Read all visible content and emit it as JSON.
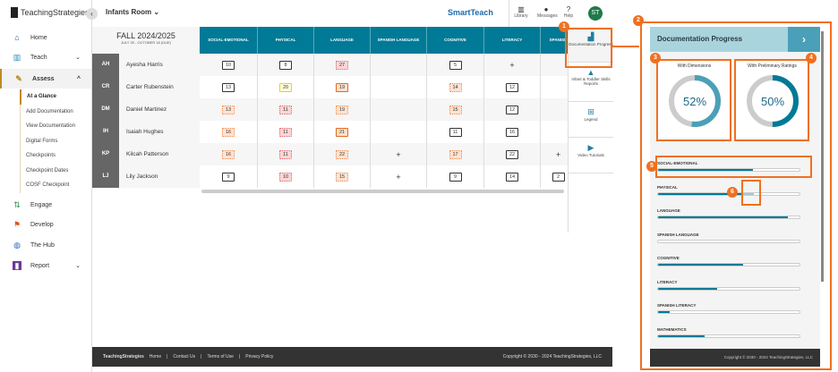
{
  "app": {
    "logo": "TeachingStrategies",
    "room": "Infants Room",
    "brand": "SmartTeach",
    "avatar": "ST"
  },
  "top_tools": [
    {
      "label": "Library",
      "icon": "library-icon"
    },
    {
      "label": "Messages",
      "icon": "chat-icon"
    },
    {
      "label": "Help",
      "icon": "help-icon"
    }
  ],
  "sidebar": {
    "items": [
      {
        "label": "Home",
        "icon": "home-icon"
      },
      {
        "label": "Teach",
        "icon": "book-icon"
      },
      {
        "label": "Assess",
        "icon": "clipboard-icon"
      },
      {
        "label": "Engage",
        "icon": "engage-icon"
      },
      {
        "label": "Develop",
        "icon": "flag-icon"
      },
      {
        "label": "The Hub",
        "icon": "globe-icon"
      },
      {
        "label": "Report",
        "icon": "chart-icon"
      }
    ],
    "sub_items": [
      "At a Glance",
      "Add Documentation",
      "View Documentation",
      "Digital Forms",
      "Checkpoints",
      "Checkpoint Dates",
      "COSF Checkpoint"
    ]
  },
  "grid": {
    "term": "FALL 2024/2025",
    "dates": "JULY 30 - OCTOBER 18 (DUE)",
    "columns": [
      "SOCIAL-EMOTIONAL",
      "PHYSICAL",
      "LANGUAGE",
      "SPANISH LANGUAGE",
      "COGNITIVE",
      "LITERACY",
      "SPANISH LITERACY"
    ],
    "rows": [
      {
        "initials": "AH",
        "name": "Ayesha Harris",
        "cells": [
          [
            "10",
            "dark"
          ],
          [
            "8",
            "dark"
          ],
          [
            "27",
            "pink"
          ],
          [
            "",
            ""
          ],
          [
            "5",
            "dark"
          ],
          [
            "+",
            "plus"
          ],
          [
            "",
            ""
          ]
        ]
      },
      {
        "initials": "CR",
        "name": "Carter Rubenstein",
        "cells": [
          [
            "13",
            "dark"
          ],
          [
            "20",
            "yellow"
          ],
          [
            "19",
            "orange"
          ],
          [
            "",
            ""
          ],
          [
            "14",
            "peach"
          ],
          [
            "12",
            "dark"
          ],
          [
            "",
            ""
          ]
        ]
      },
      {
        "initials": "DM",
        "name": "Daniel Martinez",
        "cells": [
          [
            "13",
            "peach"
          ],
          [
            "11",
            "pink"
          ],
          [
            "19",
            "peach"
          ],
          [
            "",
            ""
          ],
          [
            "15",
            "peach"
          ],
          [
            "12",
            "dark"
          ],
          [
            "",
            ""
          ]
        ]
      },
      {
        "initials": "IH",
        "name": "Isaiah Hughes",
        "cells": [
          [
            "16",
            "peach"
          ],
          [
            "11",
            "pink"
          ],
          [
            "21",
            "orange"
          ],
          [
            "",
            ""
          ],
          [
            "11",
            "dark"
          ],
          [
            "16",
            "dark"
          ],
          [
            "",
            ""
          ]
        ]
      },
      {
        "initials": "KP",
        "name": "Kilcah Patterson",
        "cells": [
          [
            "16",
            "peach"
          ],
          [
            "11",
            "pink"
          ],
          [
            "22",
            "peach"
          ],
          [
            "+",
            "plus"
          ],
          [
            "17",
            "peach"
          ],
          [
            "22",
            "dark"
          ],
          [
            "+",
            "plus"
          ]
        ]
      },
      {
        "initials": "LJ",
        "name": "Lily Jackson",
        "cells": [
          [
            "9",
            "dark"
          ],
          [
            "10",
            "pink"
          ],
          [
            "15",
            "peach"
          ],
          [
            "+",
            "plus"
          ],
          [
            "9",
            "dark"
          ],
          [
            "14",
            "dark"
          ],
          [
            "2",
            "dark"
          ]
        ]
      }
    ]
  },
  "tools": [
    {
      "label": "Documentation Progress",
      "icon": "bar-chart-icon"
    },
    {
      "label": "Infant & Toddler Skills Reports",
      "icon": "shapes-icon"
    },
    {
      "label": "Legend",
      "icon": "map-icon"
    },
    {
      "label": "Video Tutorials",
      "icon": "play-icon"
    }
  ],
  "footer": {
    "links": [
      "Home",
      "Contact Us",
      "Terms of Use",
      "Privacy Policy"
    ],
    "copyright": "Copyright © 2030 - 2024 TeachingStrategies, LLC"
  },
  "panel": {
    "title": "Documentation Progress",
    "donuts": [
      {
        "label": "With Dimensions",
        "value": "52%",
        "percent": 52,
        "color": "#4aa0b8"
      },
      {
        "label": "With Preliminary Ratings",
        "value": "50%",
        "percent": 50,
        "color": "#007a96"
      }
    ],
    "bars": [
      {
        "label": "SOCIAL-EMOTIONAL",
        "percent": 67
      },
      {
        "label": "PHYSICAL",
        "percent": 60,
        "secondary": 68
      },
      {
        "label": "LANGUAGE",
        "percent": 92
      },
      {
        "label": "SPANISH LANGUAGE",
        "percent": 0
      },
      {
        "label": "COGNITIVE",
        "percent": 60
      },
      {
        "label": "LITERACY",
        "percent": 42
      },
      {
        "label": "SPANISH LITERACY",
        "percent": 8
      },
      {
        "label": "MATHEMATICS",
        "percent": 33
      }
    ],
    "copyright": "Copyright © 2030 - 2024 TeachingStrategies, LLC"
  },
  "callouts": [
    "1",
    "2",
    "3",
    "4",
    "5",
    "6"
  ],
  "colors": {
    "accent": "#007a96",
    "callout": "#f07020"
  }
}
